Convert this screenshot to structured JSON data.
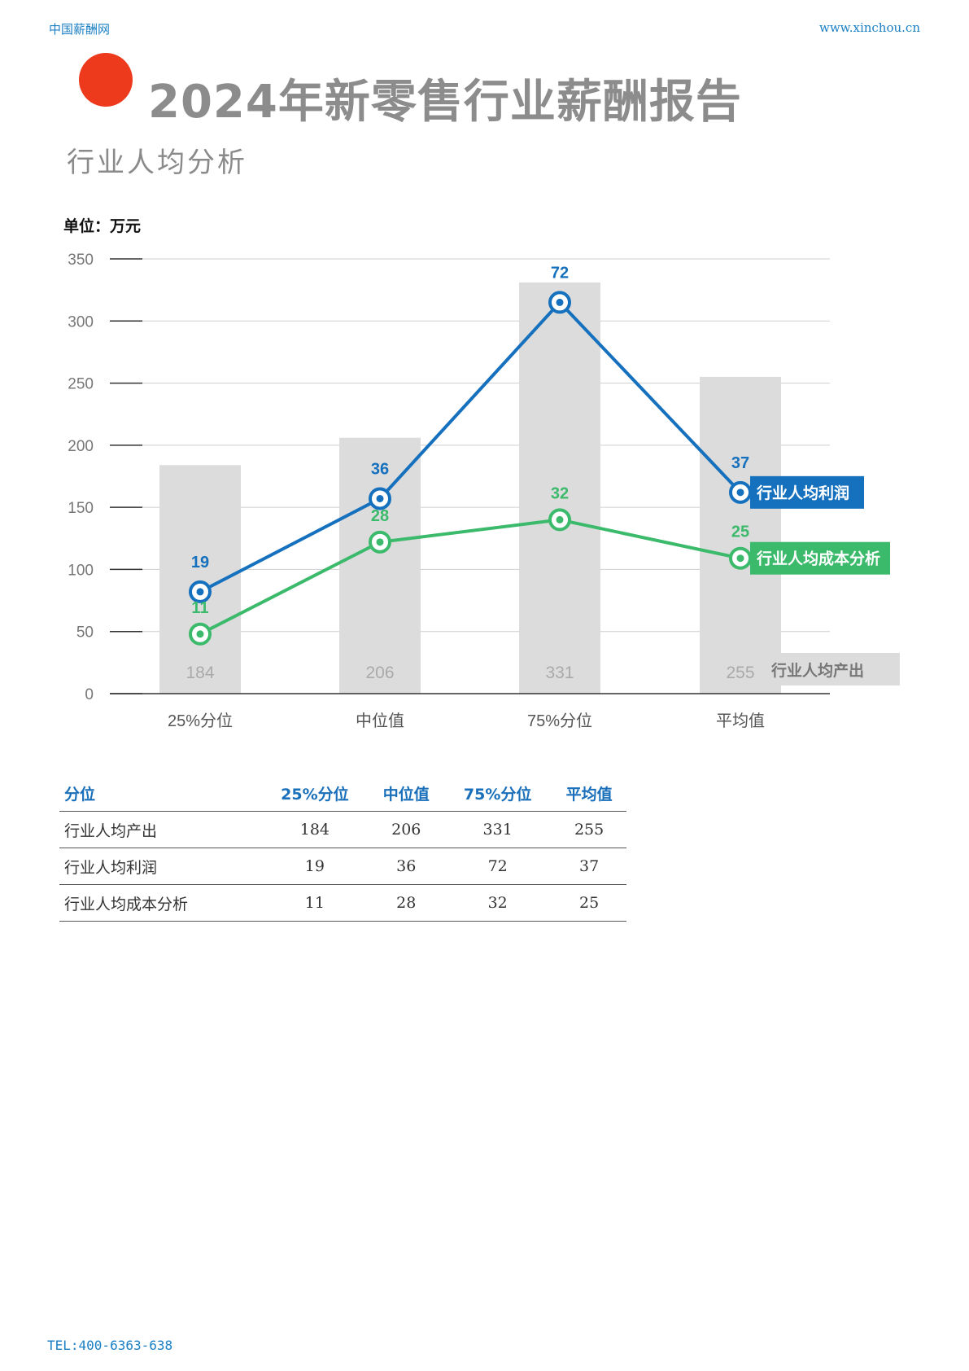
{
  "header": {
    "site_name": "中国薪酬网",
    "site_url": "www.xinchou.cn"
  },
  "report_title": "2024年新零售行业薪酬报告",
  "section_title": "行业人均分析",
  "unit_label": "单位：万元",
  "colors": {
    "accent_dot": "#ee3a1c",
    "bar": "#dcdcdc",
    "profit": "#1570bd",
    "cost": "#3cba6b",
    "table_header": "#1a6fba"
  },
  "chart_data": {
    "type": "bar",
    "categories": [
      "25%分位",
      "中位值",
      "75%分位",
      "平均值"
    ],
    "ylim": [
      0,
      350
    ],
    "yticks": [
      0,
      50,
      100,
      150,
      200,
      250,
      300,
      350
    ],
    "grid": true,
    "series": [
      {
        "name": "行业人均产出",
        "type": "bar",
        "values": [
          184,
          206,
          331,
          255
        ],
        "labels": [
          "184",
          "206",
          "331",
          "255"
        ]
      },
      {
        "name": "行业人均利润",
        "type": "line",
        "values": [
          82,
          157,
          315,
          162
        ],
        "labels": [
          "19",
          "36",
          "72",
          "37"
        ]
      },
      {
        "name": "行业人均成本分析",
        "type": "line",
        "values": [
          48,
          122,
          140,
          109
        ],
        "labels": [
          "11",
          "28",
          "32",
          "25"
        ]
      }
    ]
  },
  "table": {
    "headers": [
      "分位",
      "25%分位",
      "中位值",
      "75%分位",
      "平均值"
    ],
    "rows": [
      [
        "行业人均产出",
        "184",
        "206",
        "331",
        "255"
      ],
      [
        "行业人均利润",
        "19",
        "36",
        "72",
        "37"
      ],
      [
        "行业人均成本分析",
        "11",
        "28",
        "32",
        "25"
      ]
    ]
  },
  "footer": {
    "tel": "TEL:400-6363-638"
  }
}
